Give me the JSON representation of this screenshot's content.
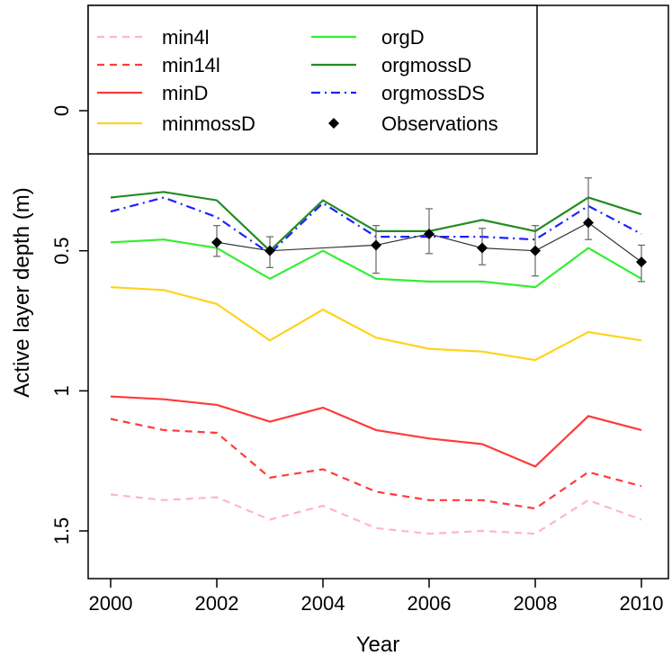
{
  "chart_data": {
    "type": "line",
    "title": "",
    "xlabel": "Year",
    "ylabel": "Active layer depth (m)",
    "xlim": [
      2000,
      2010
    ],
    "ylim": [
      1.5,
      0
    ],
    "y_axis_inverted": true,
    "x_ticks": [
      2000,
      2002,
      2004,
      2006,
      2008,
      2010
    ],
    "x_tick_labels": [
      "2000",
      "2002",
      "2004",
      "2006",
      "2008",
      "2010"
    ],
    "y_ticks": [
      0,
      0.5,
      1,
      1.5
    ],
    "y_tick_labels": [
      "0",
      "0.5",
      "1",
      "1.5"
    ],
    "grid": false,
    "legend_position": "top-left",
    "x": [
      2000,
      2001,
      2002,
      2003,
      2004,
      2005,
      2006,
      2007,
      2008,
      2009,
      2010
    ],
    "series": [
      {
        "name": "min4l",
        "color": "#ffb6c1",
        "dash": "dashed",
        "values": [
          1.37,
          1.39,
          1.38,
          1.46,
          1.41,
          1.49,
          1.51,
          1.5,
          1.51,
          1.39,
          1.46
        ]
      },
      {
        "name": "min14l",
        "color": "#ff3b3b",
        "dash": "dashed",
        "values": [
          1.1,
          1.14,
          1.15,
          1.31,
          1.28,
          1.36,
          1.39,
          1.39,
          1.42,
          1.29,
          1.34
        ]
      },
      {
        "name": "minD",
        "color": "#ff3b3b",
        "dash": "solid",
        "values": [
          1.02,
          1.03,
          1.05,
          1.11,
          1.06,
          1.14,
          1.17,
          1.19,
          1.27,
          1.09,
          1.14
        ]
      },
      {
        "name": "minmossD",
        "color": "#ffd21e",
        "dash": "solid",
        "values": [
          0.63,
          0.64,
          0.69,
          0.82,
          0.71,
          0.81,
          0.85,
          0.86,
          0.89,
          0.79,
          0.82
        ]
      },
      {
        "name": "orgD",
        "color": "#33ee33",
        "dash": "solid",
        "values": [
          0.47,
          0.46,
          0.49,
          0.6,
          0.5,
          0.6,
          0.61,
          0.61,
          0.63,
          0.49,
          0.6
        ]
      },
      {
        "name": "orgmossD",
        "color": "#228b22",
        "dash": "solid",
        "values": [
          0.31,
          0.29,
          0.32,
          0.5,
          0.32,
          0.43,
          0.43,
          0.39,
          0.43,
          0.31,
          0.37
        ]
      },
      {
        "name": "orgmossDS",
        "color": "#1f1fff",
        "dash": "dashdot",
        "values": [
          0.36,
          0.31,
          0.38,
          0.51,
          0.33,
          0.45,
          0.45,
          0.45,
          0.46,
          0.34,
          0.44
        ]
      }
    ],
    "observations": {
      "name": "Observations",
      "color": "#000000",
      "x": [
        2002,
        2003,
        2005,
        2006,
        2007,
        2008,
        2009,
        2010
      ],
      "values": [
        0.47,
        0.5,
        0.48,
        0.44,
        0.49,
        0.5,
        0.4,
        0.54
      ],
      "err_low": [
        0.52,
        0.56,
        0.58,
        0.51,
        0.55,
        0.59,
        0.46,
        0.61
      ],
      "err_high": [
        0.41,
        0.45,
        0.41,
        0.35,
        0.42,
        0.41,
        0.24,
        0.48
      ]
    },
    "legend": {
      "left": [
        "min4l",
        "min14l",
        "minD",
        "minmossD"
      ],
      "right": [
        "orgD",
        "orgmossD",
        "orgmossDS",
        "Observations"
      ]
    }
  }
}
